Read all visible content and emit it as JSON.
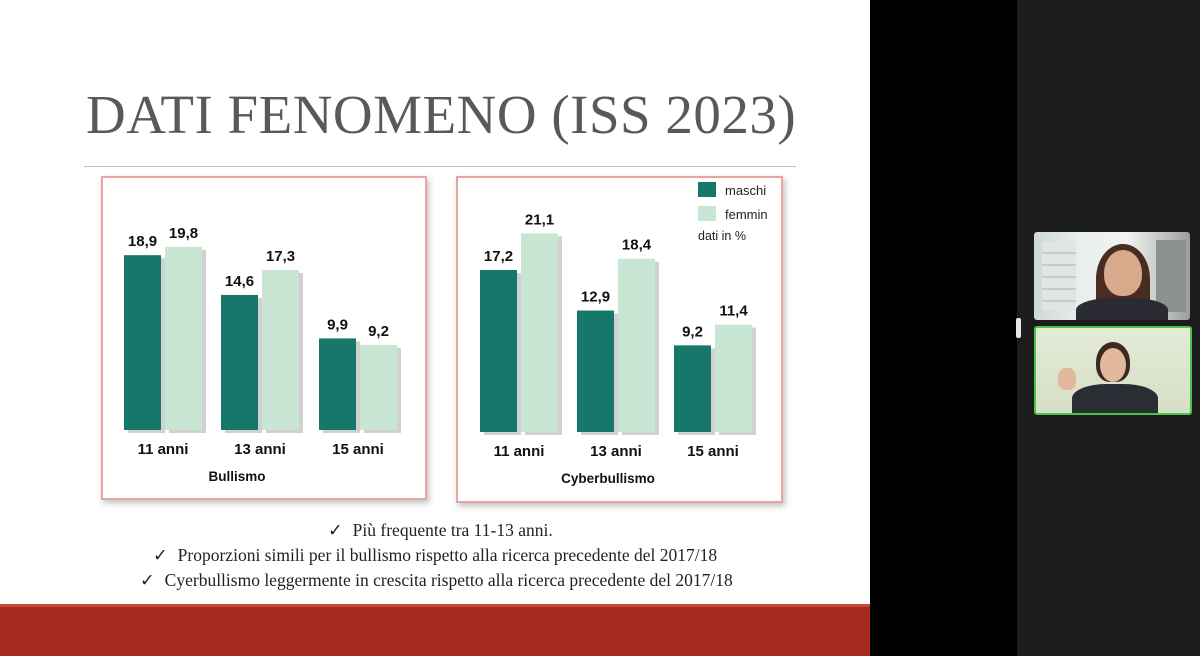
{
  "slide": {
    "title": "DATI FENOMENO (ISS 2023)",
    "bullets": [
      "Più frequente tra 11-13 anni.",
      "Proporzioni simili per il bullismo rispetto alla ricerca precedente del 2017/18",
      "Cyerbullismo leggermente in crescita rispetto alla ricerca precedente del 2017/18"
    ],
    "check_glyph": "✓"
  },
  "colors": {
    "maschi": "#16776a",
    "femmine": "#c9e6d4",
    "chart_border": "#e8a3a3",
    "footer": "#a52b1f",
    "active_speaker_border": "#4cc24a"
  },
  "chart_data": [
    {
      "type": "bar",
      "title": "Bullismo",
      "categories": [
        "11 anni",
        "13 anni",
        "15 anni"
      ],
      "series": [
        {
          "name": "maschi",
          "values": [
            18.9,
            14.6,
            9.9
          ]
        },
        {
          "name": "femmine",
          "values": [
            19.8,
            17.3,
            9.2
          ]
        }
      ],
      "value_labels": [
        [
          "18,9",
          "14,6",
          "9,9"
        ],
        [
          "19,8",
          "17,3",
          "9,2"
        ]
      ],
      "ylim": [
        0,
        24
      ],
      "grid": false,
      "legend": "none"
    },
    {
      "type": "bar",
      "title": "Cyberbullismo",
      "categories": [
        "11 anni",
        "13 anni",
        "15 anni"
      ],
      "series": [
        {
          "name": "maschi",
          "values": [
            17.2,
            12.9,
            9.2
          ]
        },
        {
          "name": "femmine",
          "values": [
            21.1,
            18.4,
            11.4
          ]
        }
      ],
      "value_labels": [
        [
          "17,2",
          "12,9",
          "9,2"
        ],
        [
          "21,1",
          "18,4",
          "11,4"
        ]
      ],
      "ylim": [
        0,
        24
      ],
      "grid": false,
      "legend": "top-right",
      "legend_labels": [
        "maschi",
        "femmin"
      ],
      "legend_note": "dati in %"
    }
  ],
  "video_call": {
    "tiles": [
      {
        "participant": "participant-1",
        "active": false
      },
      {
        "participant": "participant-2",
        "active": true
      }
    ]
  }
}
